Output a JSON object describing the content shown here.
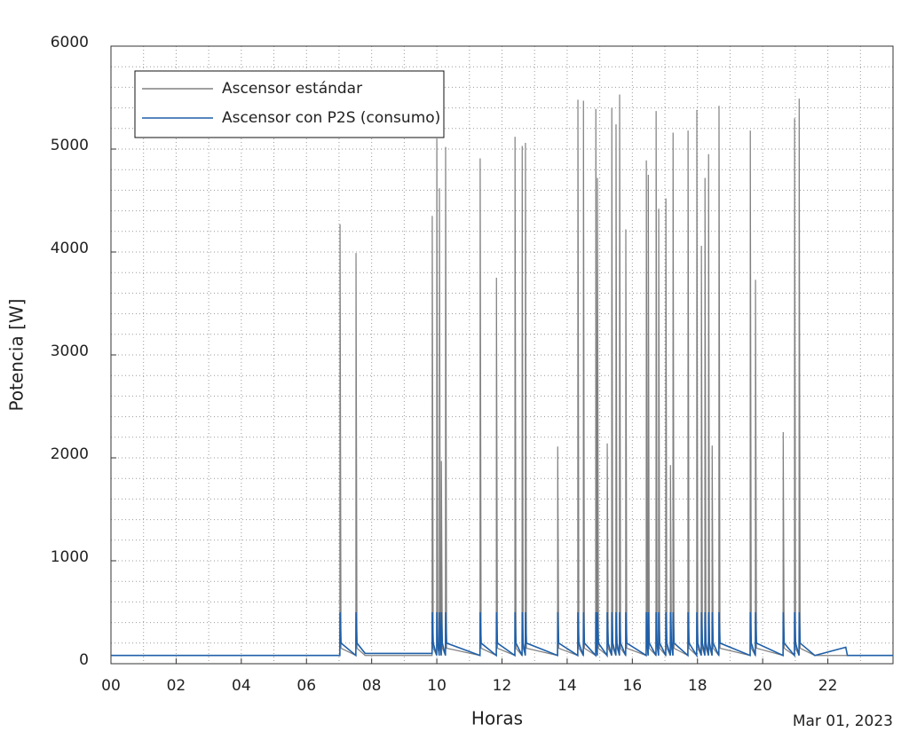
{
  "chart_data": {
    "type": "line",
    "xlabel": "Horas",
    "ylabel": "Potencia [W]",
    "annotation": "Mar 01, 2023",
    "xlim": [
      0,
      24
    ],
    "ylim": [
      0,
      6000
    ],
    "xticks": [
      {
        "value": 0,
        "label": "00"
      },
      {
        "value": 2,
        "label": "02"
      },
      {
        "value": 4,
        "label": "04"
      },
      {
        "value": 6,
        "label": "06"
      },
      {
        "value": 8,
        "label": "08"
      },
      {
        "value": 10,
        "label": "10"
      },
      {
        "value": 12,
        "label": "12"
      },
      {
        "value": 14,
        "label": "14"
      },
      {
        "value": 16,
        "label": "16"
      },
      {
        "value": 18,
        "label": "18"
      },
      {
        "value": 20,
        "label": "20"
      },
      {
        "value": 22,
        "label": "22"
      }
    ],
    "yticks": [
      0,
      1000,
      2000,
      3000,
      4000,
      5000,
      6000
    ],
    "xminorticks": [
      1,
      3,
      5,
      7,
      9,
      11,
      13,
      15,
      17,
      19,
      21,
      23
    ],
    "yminorticks": [
      200,
      400,
      600,
      800,
      1200,
      1400,
      1600,
      1800,
      2200,
      2400,
      2600,
      2800,
      3200,
      3400,
      3600,
      3800,
      4200,
      4400,
      4600,
      4800,
      5200,
      5400,
      5600,
      5800
    ],
    "grid": true,
    "legend": "upper left",
    "x": [
      0,
      7.025,
      7.03,
      7.06,
      7.515,
      7.52,
      7.55,
      7.8,
      9.855,
      9.86,
      9.89,
      9.995,
      10.0,
      10.03,
      10.075,
      10.08,
      10.11,
      10.135,
      10.14,
      10.17,
      10.265,
      10.27,
      10.3,
      11.325,
      11.33,
      11.36,
      11.825,
      11.83,
      11.86,
      12.395,
      12.4,
      12.43,
      12.615,
      12.62,
      12.65,
      12.715,
      12.72,
      12.75,
      13.705,
      13.71,
      13.74,
      14.325,
      14.33,
      14.36,
      14.495,
      14.5,
      14.53,
      14.875,
      14.88,
      14.91,
      14.925,
      14.93,
      14.96,
      15.225,
      15.23,
      15.26,
      15.365,
      15.37,
      15.4,
      15.495,
      15.5,
      15.53,
      15.605,
      15.61,
      15.64,
      15.795,
      15.8,
      15.83,
      16.425,
      16.43,
      16.46,
      16.485,
      16.49,
      16.52,
      16.725,
      16.73,
      16.76,
      16.805,
      16.81,
      16.84,
      17.025,
      17.03,
      17.06,
      17.165,
      17.17,
      17.2,
      17.245,
      17.25,
      17.28,
      17.705,
      17.71,
      17.74,
      17.975,
      17.98,
      18.01,
      18.115,
      18.12,
      18.15,
      18.225,
      18.23,
      18.26,
      18.335,
      18.34,
      18.37,
      18.445,
      18.45,
      18.48,
      18.655,
      18.66,
      18.69,
      19.615,
      19.62,
      19.65,
      19.775,
      19.78,
      19.81,
      20.625,
      20.63,
      20.66,
      20.975,
      20.98,
      21.01,
      21.115,
      21.12,
      21.15,
      21.6,
      22.55,
      22.6,
      24
    ],
    "series": [
      {
        "name": "Ascensor estándar",
        "color": "#808080",
        "values": [
          80,
          80,
          4270,
          150,
          80,
          3990,
          150,
          80,
          80,
          4350,
          150,
          80,
          5100,
          150,
          80,
          4620,
          150,
          80,
          1970,
          150,
          80,
          5020,
          150,
          80,
          4910,
          150,
          80,
          3750,
          150,
          80,
          5120,
          150,
          80,
          5030,
          150,
          80,
          5060,
          150,
          80,
          2110,
          150,
          80,
          5480,
          150,
          80,
          5470,
          150,
          80,
          5390,
          150,
          80,
          4720,
          150,
          80,
          2140,
          150,
          80,
          5400,
          150,
          80,
          5240,
          150,
          80,
          5530,
          150,
          80,
          4220,
          150,
          80,
          4890,
          150,
          80,
          4750,
          150,
          80,
          5370,
          150,
          80,
          4420,
          150,
          80,
          4520,
          150,
          80,
          1930,
          150,
          80,
          5160,
          150,
          80,
          5180,
          150,
          80,
          5380,
          150,
          80,
          4060,
          150,
          80,
          4720,
          150,
          80,
          4950,
          150,
          80,
          2120,
          150,
          80,
          5420,
          150,
          80,
          5180,
          150,
          80,
          3730,
          150,
          80,
          2250,
          150,
          80,
          5300,
          150,
          80,
          5490,
          150,
          80,
          80,
          80,
          80
        ]
      },
      {
        "name": "Ascensor con P2S (consumo)",
        "color": "#1f5fa8",
        "values": [
          80,
          80,
          500,
          200,
          80,
          500,
          200,
          100,
          100,
          500,
          200,
          80,
          500,
          200,
          80,
          500,
          200,
          80,
          500,
          200,
          80,
          500,
          200,
          80,
          500,
          200,
          80,
          500,
          200,
          80,
          500,
          200,
          80,
          500,
          200,
          80,
          500,
          200,
          80,
          500,
          200,
          80,
          500,
          200,
          80,
          500,
          200,
          80,
          500,
          200,
          80,
          500,
          200,
          80,
          500,
          200,
          80,
          500,
          200,
          80,
          500,
          200,
          80,
          500,
          200,
          80,
          500,
          200,
          80,
          500,
          200,
          80,
          500,
          200,
          80,
          500,
          200,
          80,
          500,
          200,
          80,
          500,
          200,
          80,
          500,
          200,
          80,
          500,
          200,
          80,
          500,
          200,
          80,
          500,
          200,
          80,
          500,
          200,
          80,
          500,
          200,
          80,
          500,
          200,
          80,
          500,
          200,
          80,
          500,
          200,
          80,
          500,
          200,
          80,
          500,
          200,
          80,
          500,
          200,
          80,
          500,
          200,
          80,
          500,
          200,
          80,
          160,
          80,
          80
        ]
      }
    ]
  }
}
